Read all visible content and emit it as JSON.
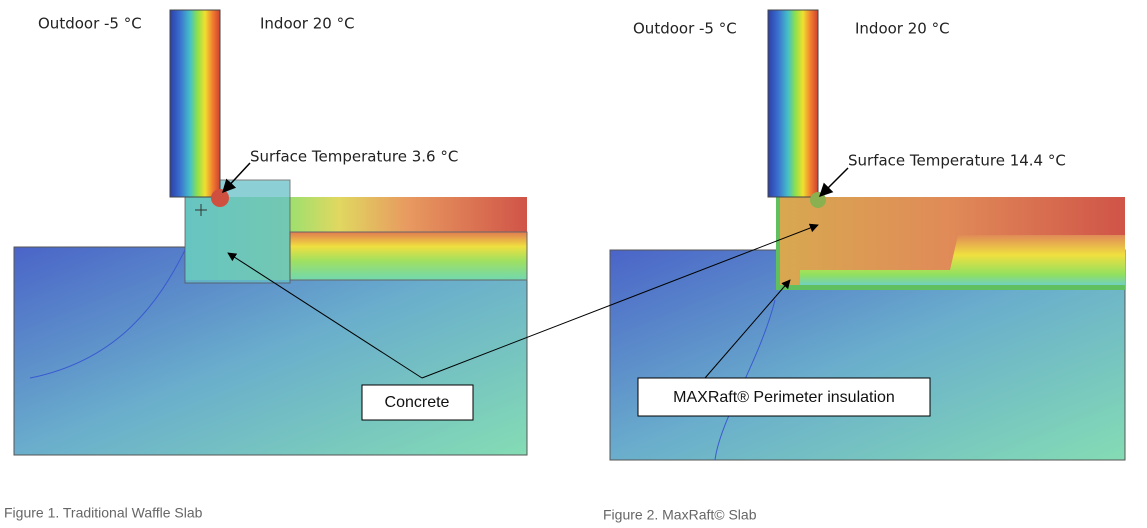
{
  "figures": [
    {
      "outdoor": "Outdoor -5 °C",
      "indoor": "Indoor 20 °C",
      "surface_temperature": "Surface Temperature 3.6 °C",
      "caption": "Figure 1. Traditional Waffle Slab"
    },
    {
      "outdoor": "Outdoor -5 °C",
      "indoor": "Indoor 20 °C",
      "surface_temperature": "Surface Temperature 14.4 °C",
      "caption": "Figure 2. MaxRaft© Slab"
    }
  ],
  "callouts": {
    "concrete": "Concrete",
    "insulation": "MAXRaft® Perimeter insulation"
  }
}
